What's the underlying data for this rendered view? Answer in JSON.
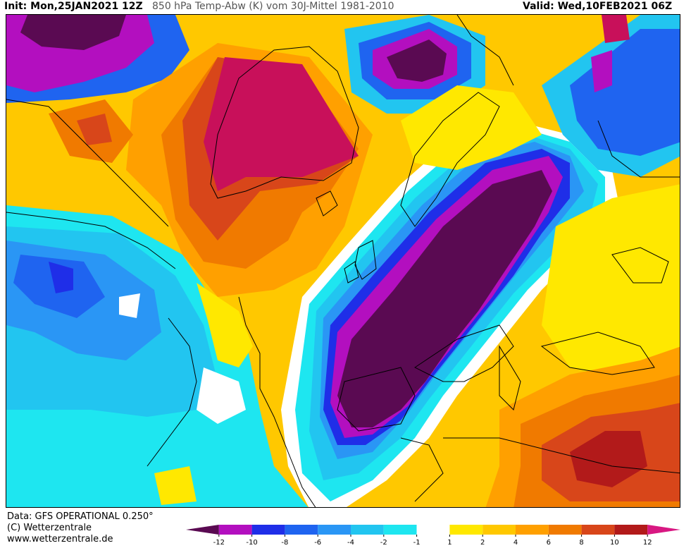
{
  "header": {
    "init": "Init: Mon,25JAN2021 12Z",
    "title": "850 hPa Temp-Abw (K) vom 30J-Mittel 1981-2010",
    "valid": "Valid: Wed,10FEB2021 06Z"
  },
  "footer": {
    "data_line": "Data: GFS OPERATIONAL 0.250°",
    "copyright": "(C) Wetterzentrale",
    "url": "www.wetterzentrale.de"
  },
  "legend": {
    "colors": [
      "#5a0a52",
      "#b30fbf",
      "#1f2ee8",
      "#1f64f0",
      "#2a96f5",
      "#22c5f0",
      "#1ee6f0",
      "#ffffff",
      "#ffe800",
      "#ffc800",
      "#ffa000",
      "#f07a00",
      "#d8461a",
      "#b21a1a",
      "#d81882"
    ],
    "labels": [
      "-12",
      "-10",
      "-8",
      "-6",
      "-4",
      "-2",
      "-1",
      "1",
      "2",
      "4",
      "6",
      "8",
      "10",
      "12"
    ]
  },
  "map": {
    "background_color": "#ffc800",
    "colors": {
      "deep_purple": "#5a0a52",
      "magenta": "#b30fbf",
      "dark_blue": "#1f2ee8",
      "blue": "#1f64f0",
      "mid_blue": "#2a96f5",
      "light_blue": "#22c5f0",
      "cyan": "#1ee6f0",
      "white": "#ffffff",
      "yellow": "#ffe800",
      "gold": "#ffc800",
      "orange": "#ffa000",
      "dark_orange": "#f07a00",
      "red_orange": "#d8461a",
      "dark_red": "#b21a1a",
      "crimson": "#c8105a"
    }
  }
}
